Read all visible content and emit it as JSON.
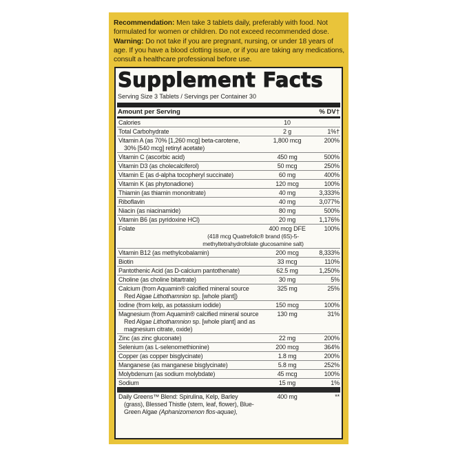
{
  "recommendation": {
    "label": "Recommendation:",
    "text": " Men take 3 tablets daily, preferably with food. Not formulated for women or children. Do not exceed recommended dose."
  },
  "warning": {
    "label": "Warning:",
    "text": " Do not take if you are pregnant, nursing, or under 18 years of age. If you have a blood clotting issue, or if you are taking any medications, consult a healthcare professional before use."
  },
  "facts": {
    "title": "Supplement Facts",
    "serving": "Serving Size 3 Tablets / Servings per Container 30",
    "header_amount": "Amount per Serving",
    "header_dv": "% DV†",
    "rows": [
      {
        "name": [
          {
            "t": "Calories"
          }
        ],
        "amount": "10",
        "dv": ""
      },
      {
        "name": [
          {
            "t": "Total Carbohydrate"
          }
        ],
        "amount": "2 g",
        "dv": "1%†"
      },
      {
        "name": [
          {
            "t": "Vitamin A (as 70% [1,260 mcg] beta-carotene,"
          }
        ],
        "cont": [
          {
            "t": "30% [540 mcg] retinyl acetate)"
          }
        ],
        "amount": "1,800 mcg",
        "dv": "200%"
      },
      {
        "name": [
          {
            "t": "Vitamin C (ascorbic acid)"
          }
        ],
        "amount": "450 mg",
        "dv": "500%"
      },
      {
        "name": [
          {
            "t": "Vitamin D3 (as cholecalciferol)"
          }
        ],
        "amount": "50 mcg",
        "dv": "250%"
      },
      {
        "name": [
          {
            "t": "Vitamin E (as d-alpha tocopheryl succinate)"
          }
        ],
        "amount": "60 mg",
        "dv": "400%"
      },
      {
        "name": [
          {
            "t": "Vitamin K (as phytonadione)"
          }
        ],
        "amount": "120 mcg",
        "dv": "100%"
      },
      {
        "name": [
          {
            "t": "Thiamin (as thiamin mononitrate)"
          }
        ],
        "amount": "40 mg",
        "dv": "3,333%"
      },
      {
        "name": [
          {
            "t": "Riboflavin"
          }
        ],
        "amount": "40 mg",
        "dv": "3,077%"
      },
      {
        "name": [
          {
            "t": "Niacin (as niacinamide)"
          }
        ],
        "amount": "80 mg",
        "dv": "500%"
      },
      {
        "name": [
          {
            "t": "Vitamin B6 (as pyridoxine HCl)"
          }
        ],
        "amount": "20 mg",
        "dv": "1,176%"
      },
      {
        "name": [
          {
            "t": "Folate"
          }
        ],
        "amount": "400 mcg DFE",
        "dv": "100%",
        "sub": "(418 mcg Quatrefolic® brand (6S)-5-methyltetrahydrofolate glucosamine salt)"
      },
      {
        "name": [
          {
            "t": "Vitamin B12 (as methylcobalamin)"
          }
        ],
        "amount": "200 mcg",
        "dv": "8,333%"
      },
      {
        "name": [
          {
            "t": "Biotin"
          }
        ],
        "amount": "33 mcg",
        "dv": "110%"
      },
      {
        "name": [
          {
            "t": "Pantothenic Acid (as D-calcium pantothenate)"
          }
        ],
        "amount": "62.5 mg",
        "dv": "1,250%"
      },
      {
        "name": [
          {
            "t": "Choline (as choline bitartrate)"
          }
        ],
        "amount": "30 mg",
        "dv": "5%"
      },
      {
        "name": [
          {
            "t": "Calcium (from Aquamin® calcified mineral source"
          }
        ],
        "cont": [
          {
            "t": "Red Algae "
          },
          {
            "t": "Lithothamnion",
            "i": true
          },
          {
            "t": " sp. [whole plant])"
          }
        ],
        "amount": "325 mg",
        "dv": "25%"
      },
      {
        "name": [
          {
            "t": "Iodine (from kelp, as potassium iodide)"
          }
        ],
        "amount": "150 mcg",
        "dv": "100%"
      },
      {
        "name": [
          {
            "t": "Magnesium (from Aquamin® calcified mineral source"
          }
        ],
        "cont": [
          {
            "t": "Red Algae "
          },
          {
            "t": "Lithothamnion",
            "i": true
          },
          {
            "t": " sp. [whole plant] and as magnesium citrate, oxide)"
          }
        ],
        "amount": "130 mg",
        "dv": "31%"
      },
      {
        "name": [
          {
            "t": "Zinc (as zinc gluconate)"
          }
        ],
        "amount": "22 mg",
        "dv": "200%"
      },
      {
        "name": [
          {
            "t": "Selenium (as L-selenomethionine)"
          }
        ],
        "amount": "200 mcg",
        "dv": "364%"
      },
      {
        "name": [
          {
            "t": "Copper (as copper bisglycinate)"
          }
        ],
        "amount": "1.8 mg",
        "dv": "200%"
      },
      {
        "name": [
          {
            "t": "Manganese (as manganese bisglycinate)"
          }
        ],
        "amount": "5.8 mg",
        "dv": "252%"
      },
      {
        "name": [
          {
            "t": "Molybdenum (as sodium molybdate)"
          }
        ],
        "amount": "45 mcg",
        "dv": "100%"
      },
      {
        "name": [
          {
            "t": "Sodium"
          }
        ],
        "amount": "15 mg",
        "dv": "1%"
      }
    ],
    "blend": {
      "name": [
        {
          "t": "Daily Greens™ Blend: Spirulina, Kelp, Barley"
        }
      ],
      "cont": [
        {
          "t": "(grass), Blessed Thistle (stem, leaf, flower), Blue-Green Algae "
        },
        {
          "t": "(Aphanizomenon flos-aquae),",
          "i": true
        }
      ],
      "amount": "400 mg",
      "dv": "**"
    }
  }
}
